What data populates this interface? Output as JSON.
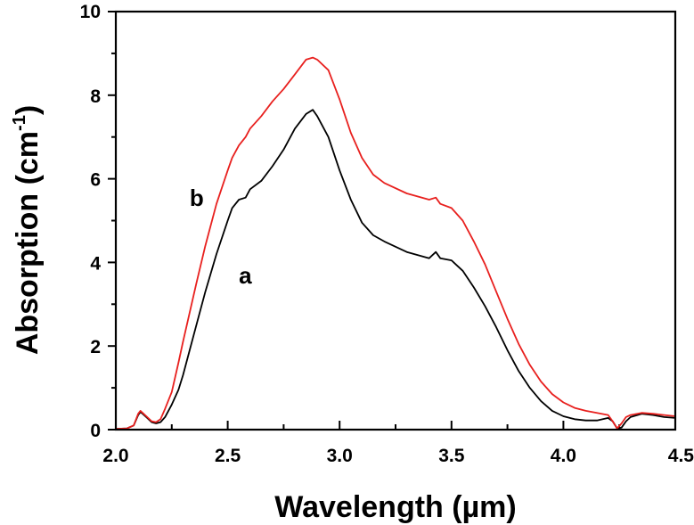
{
  "chart_data": {
    "type": "line",
    "title": "",
    "xlabel": "Wavelength (µm)",
    "ylabel_main": "Absorption (cm",
    "ylabel_sup": "-1",
    "ylabel_tail": ")",
    "xlim": [
      2.0,
      4.5
    ],
    "ylim": [
      0,
      10
    ],
    "xticks": [
      2.0,
      2.5,
      3.0,
      3.5,
      4.0,
      4.5
    ],
    "xtick_labels": [
      "2.0",
      "2.5",
      "3.0",
      "3.5",
      "4.0",
      "4.5"
    ],
    "yticks": [
      0,
      2,
      4,
      6,
      8,
      10
    ],
    "ytick_labels": [
      "0",
      "2",
      "4",
      "6",
      "8",
      "10"
    ],
    "grid": false,
    "series": [
      {
        "name": "a",
        "color": "#000000",
        "x": [
          2.0,
          2.05,
          2.08,
          2.1,
          2.11,
          2.12,
          2.14,
          2.16,
          2.18,
          2.2,
          2.22,
          2.25,
          2.28,
          2.3,
          2.33,
          2.36,
          2.4,
          2.45,
          2.5,
          2.52,
          2.55,
          2.58,
          2.6,
          2.65,
          2.7,
          2.75,
          2.8,
          2.85,
          2.88,
          2.9,
          2.95,
          3.0,
          3.05,
          3.1,
          3.15,
          3.2,
          3.3,
          3.4,
          3.43,
          3.45,
          3.5,
          3.55,
          3.6,
          3.65,
          3.7,
          3.75,
          3.8,
          3.85,
          3.9,
          3.95,
          4.0,
          4.05,
          4.1,
          4.15,
          4.2,
          4.22,
          4.24,
          4.26,
          4.28,
          4.3,
          4.35,
          4.4,
          4.45,
          4.5
        ],
        "y": [
          0.02,
          0.03,
          0.1,
          0.35,
          0.42,
          0.38,
          0.28,
          0.18,
          0.15,
          0.18,
          0.3,
          0.6,
          0.95,
          1.3,
          1.9,
          2.5,
          3.3,
          4.2,
          5.0,
          5.3,
          5.5,
          5.55,
          5.75,
          5.95,
          6.3,
          6.7,
          7.2,
          7.55,
          7.65,
          7.5,
          7.0,
          6.2,
          5.5,
          4.95,
          4.65,
          4.5,
          4.25,
          4.1,
          4.25,
          4.1,
          4.05,
          3.8,
          3.4,
          2.95,
          2.45,
          1.9,
          1.4,
          1.0,
          0.68,
          0.45,
          0.32,
          0.25,
          0.22,
          0.22,
          0.28,
          0.2,
          0.03,
          0.05,
          0.2,
          0.3,
          0.38,
          0.35,
          0.3,
          0.28
        ]
      },
      {
        "name": "b",
        "color": "#e8201e",
        "x": [
          2.0,
          2.05,
          2.08,
          2.1,
          2.11,
          2.12,
          2.14,
          2.16,
          2.18,
          2.2,
          2.22,
          2.25,
          2.28,
          2.3,
          2.33,
          2.36,
          2.4,
          2.45,
          2.5,
          2.52,
          2.55,
          2.58,
          2.6,
          2.65,
          2.7,
          2.75,
          2.8,
          2.85,
          2.88,
          2.9,
          2.95,
          3.0,
          3.05,
          3.1,
          3.15,
          3.2,
          3.3,
          3.4,
          3.43,
          3.45,
          3.5,
          3.55,
          3.6,
          3.65,
          3.7,
          3.75,
          3.8,
          3.85,
          3.9,
          3.95,
          4.0,
          4.05,
          4.1,
          4.15,
          4.2,
          4.22,
          4.24,
          4.26,
          4.28,
          4.3,
          4.35,
          4.4,
          4.45,
          4.5
        ],
        "y": [
          0.02,
          0.03,
          0.1,
          0.38,
          0.45,
          0.4,
          0.3,
          0.2,
          0.18,
          0.25,
          0.5,
          0.9,
          1.6,
          2.1,
          2.8,
          3.5,
          4.4,
          5.4,
          6.2,
          6.5,
          6.8,
          7.0,
          7.2,
          7.5,
          7.85,
          8.15,
          8.5,
          8.85,
          8.9,
          8.85,
          8.6,
          7.9,
          7.1,
          6.5,
          6.1,
          5.9,
          5.65,
          5.5,
          5.55,
          5.4,
          5.3,
          5.0,
          4.5,
          3.95,
          3.3,
          2.65,
          2.05,
          1.55,
          1.15,
          0.85,
          0.65,
          0.52,
          0.45,
          0.4,
          0.35,
          0.2,
          0.03,
          0.15,
          0.3,
          0.35,
          0.4,
          0.38,
          0.35,
          0.32
        ]
      }
    ],
    "annotations": [
      {
        "text": "a",
        "x": 2.55,
        "y": 3.5
      },
      {
        "text": "b",
        "x": 2.33,
        "y": 5.35
      }
    ]
  }
}
